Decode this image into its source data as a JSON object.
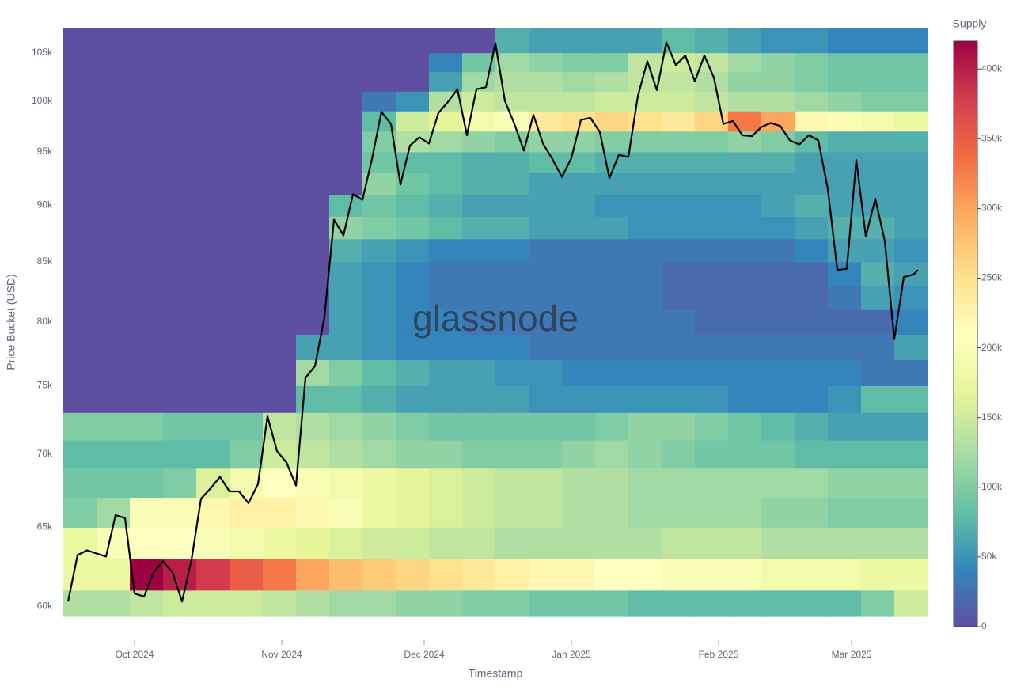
{
  "chart_data": {
    "type": "heatmap",
    "watermark": "glassnode",
    "xlabel": "Timestamp",
    "ylabel": "Price Bucket (USD)",
    "colorbar_title": "Supply",
    "ylog": true,
    "xlim": [
      "2024-09-16",
      "2025-03-17"
    ],
    "ylim": [
      59400,
      107600
    ],
    "xticks": [
      {
        "value": "2024-10-01",
        "label": "Oct 2024"
      },
      {
        "value": "2024-11-01",
        "label": "Nov 2024"
      },
      {
        "value": "2024-12-01",
        "label": "Dec 2024"
      },
      {
        "value": "2025-01-01",
        "label": "Jan 2025"
      },
      {
        "value": "2025-02-01",
        "label": "Feb 2025"
      },
      {
        "value": "2025-03-01",
        "label": "Mar 2025"
      }
    ],
    "yticks": [
      {
        "value": 60000,
        "label": "60k"
      },
      {
        "value": 65000,
        "label": "65k"
      },
      {
        "value": 70000,
        "label": "70k"
      },
      {
        "value": 75000,
        "label": "75k"
      },
      {
        "value": 80000,
        "label": "80k"
      },
      {
        "value": 85000,
        "label": "85k"
      },
      {
        "value": 90000,
        "label": "90k"
      },
      {
        "value": 95000,
        "label": "95k"
      },
      {
        "value": 100000,
        "label": "100k"
      },
      {
        "value": 105000,
        "label": "105k"
      }
    ],
    "zlim": [
      0,
      420000
    ],
    "zticks": [
      0,
      {
        "value": 50000,
        "label": "50k"
      },
      {
        "value": 100000,
        "label": "100k"
      },
      {
        "value": 150000,
        "label": "150k"
      },
      {
        "value": 200000,
        "label": "200k"
      },
      {
        "value": 250000,
        "label": "250k"
      },
      {
        "value": 300000,
        "label": "300k"
      },
      {
        "value": 350000,
        "label": "350k"
      },
      {
        "value": 400000,
        "label": "400k"
      }
    ],
    "colorscale": [
      "#5e4fa2",
      "#3288bd",
      "#66c2a5",
      "#abdda4",
      "#e6f598",
      "#ffffbf",
      "#fee08b",
      "#fdae61",
      "#f46d43",
      "#d53e4f",
      "#9e0142"
    ],
    "x_bins": [
      "2024-09-16",
      "2024-09-23",
      "2024-09-30",
      "2024-10-07",
      "2024-10-14",
      "2024-10-21",
      "2024-10-28",
      "2024-11-04",
      "2024-11-11",
      "2024-11-18",
      "2024-11-25",
      "2024-12-02",
      "2024-12-09",
      "2024-12-16",
      "2024-12-23",
      "2024-12-30",
      "2025-01-06",
      "2025-01-13",
      "2025-01-20",
      "2025-01-27",
      "2025-02-03",
      "2025-02-10",
      "2025-02-17",
      "2025-02-24",
      "2025-03-03",
      "2025-03-10",
      "2025-03-17"
    ],
    "y_bins": [
      59400,
      61000,
      63000,
      65000,
      67000,
      69000,
      71000,
      73000,
      75000,
      77000,
      79000,
      81000,
      83000,
      85000,
      87000,
      89000,
      91000,
      93000,
      95000,
      97000,
      99000,
      101000,
      103000,
      105000,
      107600
    ],
    "z": [
      [
        130000,
        130000,
        140000,
        150000,
        150000,
        150000,
        140000,
        130000,
        120000,
        120000,
        110000,
        110000,
        100000,
        100000,
        90000,
        90000,
        90000,
        80000,
        80000,
        80000,
        80000,
        80000,
        80000,
        80000,
        100000,
        150000
      ],
      [
        180000,
        180000,
        420000,
        400000,
        380000,
        350000,
        330000,
        300000,
        280000,
        270000,
        260000,
        250000,
        240000,
        230000,
        220000,
        220000,
        210000,
        210000,
        200000,
        200000,
        200000,
        190000,
        190000,
        190000,
        180000,
        180000
      ],
      [
        180000,
        200000,
        210000,
        210000,
        200000,
        190000,
        180000,
        170000,
        160000,
        150000,
        150000,
        140000,
        140000,
        130000,
        130000,
        130000,
        130000,
        130000,
        140000,
        140000,
        140000,
        130000,
        130000,
        130000,
        130000,
        130000
      ],
      [
        100000,
        120000,
        200000,
        200000,
        220000,
        230000,
        230000,
        220000,
        200000,
        180000,
        170000,
        160000,
        150000,
        140000,
        140000,
        130000,
        130000,
        120000,
        120000,
        120000,
        120000,
        110000,
        110000,
        100000,
        100000,
        100000
      ],
      [
        90000,
        90000,
        90000,
        100000,
        160000,
        190000,
        210000,
        200000,
        190000,
        180000,
        170000,
        160000,
        150000,
        140000,
        140000,
        130000,
        130000,
        120000,
        120000,
        120000,
        120000,
        120000,
        120000,
        110000,
        110000,
        110000
      ],
      [
        80000,
        80000,
        80000,
        80000,
        80000,
        100000,
        150000,
        140000,
        130000,
        120000,
        110000,
        110000,
        100000,
        100000,
        100000,
        110000,
        120000,
        110000,
        100000,
        90000,
        90000,
        90000,
        80000,
        80000,
        80000,
        80000
      ],
      [
        100000,
        100000,
        100000,
        90000,
        90000,
        90000,
        140000,
        130000,
        120000,
        110000,
        100000,
        90000,
        90000,
        90000,
        90000,
        90000,
        100000,
        110000,
        110000,
        100000,
        90000,
        80000,
        70000,
        60000,
        60000,
        60000
      ],
      [
        0,
        0,
        0,
        0,
        0,
        0,
        0,
        80000,
        80000,
        70000,
        60000,
        60000,
        60000,
        60000,
        50000,
        50000,
        50000,
        50000,
        50000,
        50000,
        40000,
        40000,
        40000,
        50000,
        80000,
        80000
      ],
      [
        0,
        0,
        0,
        0,
        0,
        0,
        0,
        120000,
        100000,
        80000,
        70000,
        60000,
        60000,
        50000,
        50000,
        40000,
        40000,
        40000,
        40000,
        40000,
        40000,
        40000,
        40000,
        40000,
        30000,
        30000
      ],
      [
        0,
        0,
        0,
        0,
        0,
        0,
        0,
        60000,
        60000,
        50000,
        40000,
        40000,
        40000,
        40000,
        30000,
        30000,
        30000,
        30000,
        30000,
        30000,
        30000,
        30000,
        30000,
        30000,
        30000,
        60000
      ],
      [
        0,
        0,
        0,
        0,
        0,
        0,
        0,
        0,
        60000,
        50000,
        40000,
        40000,
        30000,
        30000,
        30000,
        30000,
        30000,
        30000,
        30000,
        20000,
        20000,
        20000,
        20000,
        20000,
        20000,
        40000
      ],
      [
        0,
        0,
        0,
        0,
        0,
        0,
        0,
        0,
        60000,
        50000,
        40000,
        30000,
        30000,
        30000,
        30000,
        30000,
        30000,
        30000,
        20000,
        20000,
        20000,
        20000,
        20000,
        30000,
        60000,
        50000
      ],
      [
        0,
        0,
        0,
        0,
        0,
        0,
        0,
        0,
        60000,
        50000,
        40000,
        30000,
        30000,
        30000,
        30000,
        30000,
        30000,
        30000,
        20000,
        20000,
        20000,
        20000,
        20000,
        40000,
        70000,
        60000
      ],
      [
        0,
        0,
        0,
        0,
        0,
        0,
        0,
        0,
        70000,
        60000,
        50000,
        40000,
        40000,
        40000,
        30000,
        30000,
        30000,
        30000,
        30000,
        30000,
        30000,
        30000,
        40000,
        60000,
        60000,
        50000
      ],
      [
        0,
        0,
        0,
        0,
        0,
        0,
        0,
        0,
        110000,
        100000,
        90000,
        80000,
        70000,
        70000,
        60000,
        60000,
        60000,
        50000,
        50000,
        50000,
        50000,
        50000,
        60000,
        70000,
        70000,
        60000
      ],
      [
        0,
        0,
        0,
        0,
        0,
        0,
        0,
        0,
        80000,
        90000,
        80000,
        70000,
        60000,
        60000,
        60000,
        60000,
        50000,
        50000,
        50000,
        50000,
        50000,
        60000,
        70000,
        60000,
        60000,
        60000
      ],
      [
        0,
        0,
        0,
        0,
        0,
        0,
        0,
        0,
        0,
        110000,
        90000,
        80000,
        70000,
        70000,
        60000,
        60000,
        60000,
        60000,
        60000,
        60000,
        60000,
        60000,
        60000,
        60000,
        60000,
        60000
      ],
      [
        0,
        0,
        0,
        0,
        0,
        0,
        0,
        0,
        0,
        90000,
        80000,
        80000,
        70000,
        70000,
        80000,
        80000,
        70000,
        70000,
        70000,
        70000,
        70000,
        70000,
        60000,
        60000,
        60000,
        60000
      ],
      [
        0,
        0,
        0,
        0,
        0,
        0,
        0,
        0,
        0,
        100000,
        130000,
        120000,
        110000,
        100000,
        110000,
        110000,
        100000,
        100000,
        100000,
        100000,
        110000,
        100000,
        80000,
        70000,
        70000,
        70000
      ],
      [
        0,
        0,
        0,
        0,
        0,
        0,
        0,
        0,
        0,
        80000,
        150000,
        170000,
        190000,
        200000,
        240000,
        250000,
        260000,
        250000,
        240000,
        260000,
        330000,
        300000,
        220000,
        200000,
        190000,
        180000
      ],
      [
        0,
        0,
        0,
        0,
        0,
        0,
        0,
        0,
        0,
        30000,
        50000,
        130000,
        150000,
        140000,
        140000,
        140000,
        150000,
        150000,
        150000,
        140000,
        130000,
        130000,
        120000,
        110000,
        100000,
        100000
      ],
      [
        0,
        0,
        0,
        0,
        0,
        0,
        0,
        0,
        0,
        0,
        0,
        60000,
        120000,
        130000,
        130000,
        120000,
        130000,
        140000,
        140000,
        130000,
        110000,
        110000,
        100000,
        90000,
        90000,
        90000
      ],
      [
        0,
        0,
        0,
        0,
        0,
        0,
        0,
        0,
        0,
        0,
        0,
        40000,
        90000,
        120000,
        110000,
        100000,
        100000,
        140000,
        150000,
        140000,
        120000,
        110000,
        100000,
        90000,
        90000,
        90000
      ],
      [
        0,
        0,
        0,
        0,
        0,
        0,
        0,
        0,
        0,
        0,
        0,
        0,
        0,
        70000,
        60000,
        60000,
        60000,
        60000,
        80000,
        70000,
        60000,
        50000,
        50000,
        40000,
        40000,
        40000
      ]
    ],
    "line": {
      "color": "#000000",
      "x": [
        "2024-09-17",
        "2024-09-19",
        "2024-09-21",
        "2024-09-23",
        "2024-09-25",
        "2024-09-27",
        "2024-09-29",
        "2024-10-01",
        "2024-10-03",
        "2024-10-05",
        "2024-10-07",
        "2024-10-09",
        "2024-10-11",
        "2024-10-13",
        "2024-10-15",
        "2024-10-17",
        "2024-10-19",
        "2024-10-21",
        "2024-10-23",
        "2024-10-25",
        "2024-10-27",
        "2024-10-29",
        "2024-10-31",
        "2024-11-02",
        "2024-11-04",
        "2024-11-06",
        "2024-11-08",
        "2024-11-10",
        "2024-11-12",
        "2024-11-14",
        "2024-11-16",
        "2024-11-18",
        "2024-11-20",
        "2024-11-22",
        "2024-11-24",
        "2024-11-26",
        "2024-11-28",
        "2024-11-30",
        "2024-12-02",
        "2024-12-04",
        "2024-12-06",
        "2024-12-08",
        "2024-12-10",
        "2024-12-12",
        "2024-12-14",
        "2024-12-16",
        "2024-12-18",
        "2024-12-20",
        "2024-12-22",
        "2024-12-24",
        "2024-12-26",
        "2024-12-28",
        "2024-12-30",
        "2025-01-01",
        "2025-01-03",
        "2025-01-05",
        "2025-01-07",
        "2025-01-09",
        "2025-01-11",
        "2025-01-13",
        "2025-01-15",
        "2025-01-17",
        "2025-01-19",
        "2025-01-21",
        "2025-01-23",
        "2025-01-25",
        "2025-01-27",
        "2025-01-29",
        "2025-01-31",
        "2025-02-02",
        "2025-02-04",
        "2025-02-06",
        "2025-02-08",
        "2025-02-10",
        "2025-02-12",
        "2025-02-14",
        "2025-02-16",
        "2025-02-18",
        "2025-02-20",
        "2025-02-22",
        "2025-02-24",
        "2025-02-26",
        "2025-02-28",
        "2025-03-02",
        "2025-03-04",
        "2025-03-06",
        "2025-03-08",
        "2025-03-10",
        "2025-03-12",
        "2025-03-14",
        "2025-03-15"
      ],
      "values": [
        60300,
        63200,
        63500,
        63300,
        63100,
        65800,
        65600,
        60800,
        60600,
        62100,
        62800,
        62100,
        60300,
        62900,
        66900,
        67600,
        68400,
        67400,
        67400,
        66600,
        67900,
        72700,
        70200,
        69400,
        67800,
        75600,
        76500,
        80400,
        88700,
        87300,
        91000,
        90500,
        94300,
        98900,
        97700,
        91900,
        95600,
        96400,
        95800,
        98800,
        99900,
        101200,
        96600,
        101200,
        101400,
        106000,
        100000,
        97700,
        95100,
        98600,
        95800,
        94300,
        92600,
        94400,
        98100,
        98300,
        96900,
        92500,
        94700,
        94500,
        100500,
        104100,
        101100,
        106100,
        103700,
        104700,
        102000,
        104700,
        102400,
        97700,
        98000,
        96600,
        96500,
        97400,
        97800,
        97500,
        96100,
        95700,
        96600,
        96100,
        91500,
        84300,
        84400,
        94200,
        87200,
        90600,
        86800,
        78600,
        83700,
        83900,
        84300
      ]
    }
  }
}
